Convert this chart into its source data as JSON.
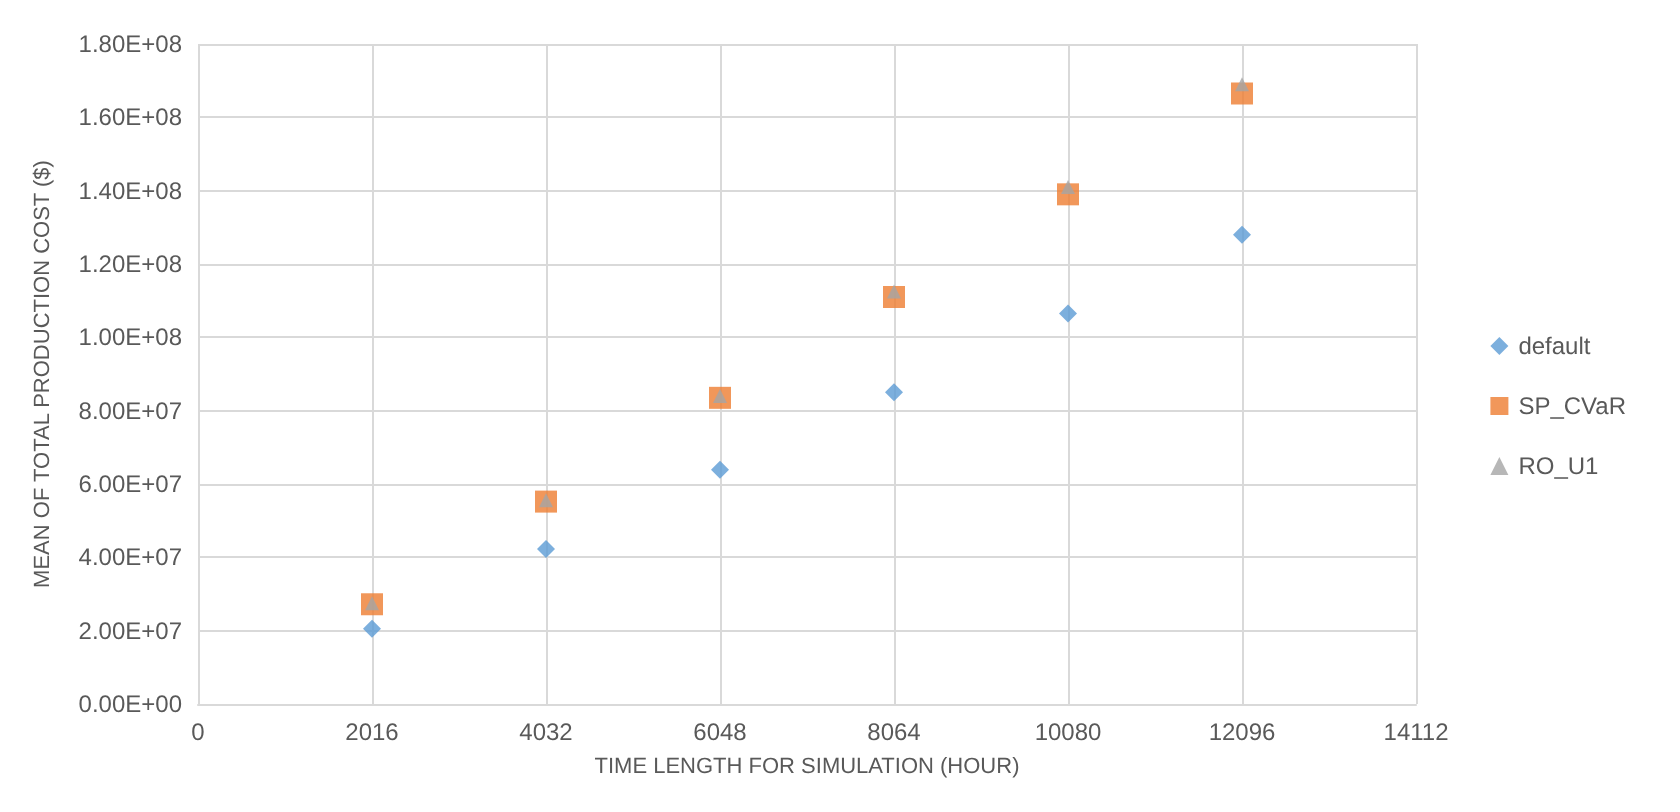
{
  "chart_data": {
    "type": "scatter",
    "xlabel": "TIME LENGTH FOR SIMULATION (HOUR)",
    "ylabel": "MEAN OF TOTAL PRODUCTION COST ($)",
    "x": [
      2016,
      4032,
      6048,
      8064,
      10080,
      12096
    ],
    "series": [
      {
        "name": "default",
        "color": "#5b9bd5",
        "marker": "diamond",
        "values": [
          20500000,
          42300000,
          63900000,
          85000000,
          106500000,
          128000000
        ]
      },
      {
        "name": "SP_CVaR",
        "color": "#ed7d31",
        "marker": "square",
        "values": [
          27200000,
          55200000,
          83500000,
          111000000,
          139000000,
          166500000
        ]
      },
      {
        "name": "RO_U1",
        "color": "#a5a5a5",
        "marker": "triangle",
        "values": [
          27500000,
          55600000,
          84000000,
          112500000,
          141000000,
          169000000
        ]
      }
    ],
    "xlim": [
      0,
      14112
    ],
    "xticks": [
      0,
      2016,
      4032,
      6048,
      8064,
      10080,
      12096,
      14112
    ],
    "ylim": [
      0,
      180000000
    ],
    "yticks": [
      {
        "value": 0,
        "label": "0.00E+00"
      },
      {
        "value": 20000000,
        "label": "2.00E+07"
      },
      {
        "value": 40000000,
        "label": "4.00E+07"
      },
      {
        "value": 60000000,
        "label": "6.00E+07"
      },
      {
        "value": 80000000,
        "label": "8.00E+07"
      },
      {
        "value": 100000000,
        "label": "1.00E+08"
      },
      {
        "value": 120000000,
        "label": "1.20E+08"
      },
      {
        "value": 140000000,
        "label": "1.40E+08"
      },
      {
        "value": 160000000,
        "label": "1.60E+08"
      },
      {
        "value": 180000000,
        "label": "1.80E+08"
      }
    ],
    "grid": true,
    "legend": "right"
  }
}
